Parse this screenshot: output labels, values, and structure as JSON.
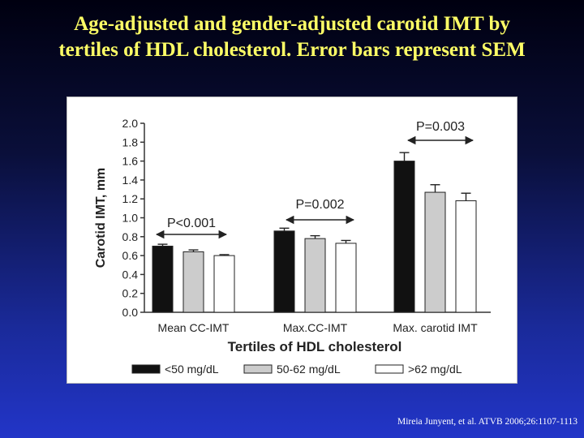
{
  "slide": {
    "title_line1": "Age-adjusted and gender-adjusted carotid IMT by",
    "title_line2": "tertiles of HDL cholesterol. Error bars represent SEM",
    "citation": "Mireia Junyent, et al.  ATVB 2006;26:1107-1113"
  },
  "chart_data": {
    "type": "bar",
    "categories": [
      "Mean CC-IMT",
      "Max.CC-IMT",
      "Max. carotid IMT"
    ],
    "series": [
      {
        "name": "<50 mg/dL",
        "values": [
          0.7,
          0.86,
          1.6
        ],
        "errors": [
          0.02,
          0.03,
          0.09
        ],
        "color": "#111111"
      },
      {
        "name": "50-62 mg/dL",
        "values": [
          0.64,
          0.78,
          1.27
        ],
        "errors": [
          0.02,
          0.03,
          0.08
        ],
        "color": "#cccccc"
      },
      {
        "name": ">62 mg/dL",
        "values": [
          0.6,
          0.73,
          1.18
        ],
        "errors": [
          0.01,
          0.03,
          0.08
        ],
        "color": "#ffffff"
      }
    ],
    "xlabel": "Tertiles of HDL cholesterol",
    "ylabel": "Carotid IMT, mm",
    "ylim": [
      0,
      2.0
    ],
    "yticks": [
      "0.0",
      "0.2",
      "0.4",
      "0.6",
      "0.8",
      "1.0",
      "1.2",
      "1.4",
      "1.6",
      "1.8",
      "2.0"
    ],
    "annotations": [
      "P<0.001",
      "P=0.002",
      "P=0.003"
    ],
    "grid": false,
    "legend_position": "bottom"
  }
}
